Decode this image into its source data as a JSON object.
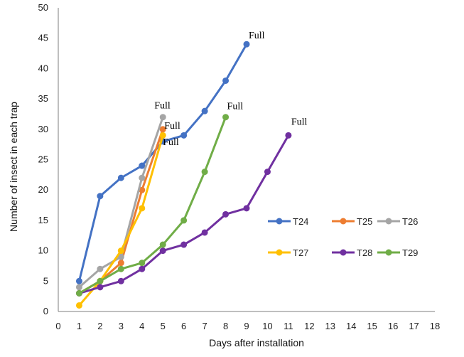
{
  "chart_data": {
    "type": "line",
    "xlabel": "Days after installation",
    "ylabel": "Number of insect in each trap",
    "xlim": [
      0,
      18
    ],
    "ylim": [
      0,
      50
    ],
    "xticks": [
      0,
      1,
      2,
      3,
      4,
      5,
      6,
      7,
      8,
      9,
      10,
      11,
      12,
      13,
      14,
      15,
      16,
      17,
      18
    ],
    "yticks": [
      0,
      5,
      10,
      15,
      20,
      25,
      30,
      35,
      40,
      45,
      50
    ],
    "grid": false,
    "legend_position": "right",
    "series": [
      {
        "name": "T24",
        "color": "#4472C4",
        "x": [
          1,
          2,
          3,
          4,
          5,
          6,
          7,
          8,
          9
        ],
        "y": [
          5,
          19,
          22,
          24,
          28,
          29,
          33,
          38,
          44
        ]
      },
      {
        "name": "T25",
        "color": "#ED7D31",
        "x": [
          1,
          2,
          3,
          4,
          5
        ],
        "y": [
          3,
          5,
          8,
          20,
          30
        ]
      },
      {
        "name": "T26",
        "color": "#A5A5A5",
        "x": [
          1,
          2,
          3,
          4,
          5
        ],
        "y": [
          4,
          7,
          9,
          22,
          32
        ]
      },
      {
        "name": "T27",
        "color": "#FFC000",
        "x": [
          1,
          2,
          3,
          4,
          5
        ],
        "y": [
          1,
          5,
          10,
          17,
          29
        ]
      },
      {
        "name": "T28",
        "color": "#7030A0",
        "x": [
          1,
          2,
          3,
          4,
          5,
          6,
          7,
          8,
          9,
          10,
          11
        ],
        "y": [
          3,
          4,
          5,
          7,
          10,
          11,
          13,
          16,
          17,
          23,
          29
        ]
      },
      {
        "name": "T29",
        "color": "#70AD47",
        "x": [
          1,
          2,
          3,
          4,
          5,
          6,
          7,
          8
        ],
        "y": [
          3,
          5,
          7,
          8,
          11,
          15,
          23,
          32
        ]
      }
    ],
    "annotations": [
      {
        "text": "Full",
        "x": 9,
        "y": 44
      },
      {
        "text": "Full",
        "x": 5,
        "y": 32
      },
      {
        "text": "Full",
        "x": 5,
        "y": 30
      },
      {
        "text": "Full",
        "x": 5,
        "y": 28
      },
      {
        "text": "Full",
        "x": 8,
        "y": 32
      },
      {
        "text": "Full",
        "x": 11,
        "y": 29
      }
    ]
  }
}
